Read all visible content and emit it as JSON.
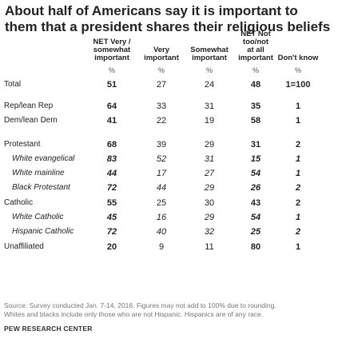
{
  "title": "About half of Americans say it is important to them that a president shares their religious beliefs",
  "columns": [
    {
      "label": "NET Very / somewhat important",
      "lines": [
        "NET Very /",
        "somewhat",
        "important"
      ],
      "pct": "%"
    },
    {
      "label": "Very important",
      "lines": [
        "Very",
        "important"
      ],
      "pct": "%"
    },
    {
      "label": "Somewhat important",
      "lines": [
        "Somewhat",
        "important"
      ],
      "pct": "%"
    },
    {
      "label": "NET Not too/not at all important",
      "lines": [
        "NET Not",
        "too/not",
        "at all",
        "important"
      ],
      "pct": "%"
    },
    {
      "label": "Don't know",
      "lines": [
        "Don't know"
      ],
      "pct": "%"
    }
  ],
  "chart_data": {
    "type": "table",
    "title": "About half of Americans say it is important to them that a president shares their religious beliefs",
    "columns": [
      "NET Very / somewhat important",
      "Very important",
      "Somewhat important",
      "NET Not too/not at all important",
      "Don't know"
    ],
    "rows": [
      {
        "label": "Total",
        "values": [
          "51",
          "27",
          "24",
          "48",
          "1=100"
        ],
        "sub": false
      },
      {
        "label": "Rep/lean Rep",
        "values": [
          "64",
          "33",
          "31",
          "35",
          "1"
        ],
        "sub": false
      },
      {
        "label": "Dem/lean Dem",
        "values": [
          "41",
          "22",
          "19",
          "58",
          "1"
        ],
        "sub": false
      },
      {
        "label": "Protestant",
        "values": [
          "68",
          "39",
          "29",
          "31",
          "2"
        ],
        "sub": false
      },
      {
        "label": "White evangelical",
        "values": [
          "83",
          "52",
          "31",
          "15",
          "1"
        ],
        "sub": true
      },
      {
        "label": "White mainline",
        "values": [
          "44",
          "17",
          "27",
          "54",
          "1"
        ],
        "sub": true
      },
      {
        "label": "Black Protestant",
        "values": [
          "72",
          "44",
          "29",
          "26",
          "2"
        ],
        "sub": true
      },
      {
        "label": "Catholic",
        "values": [
          "55",
          "25",
          "30",
          "43",
          "2"
        ],
        "sub": false
      },
      {
        "label": "White Catholic",
        "values": [
          "45",
          "16",
          "29",
          "54",
          "1"
        ],
        "sub": true
      },
      {
        "label": "Hispanic Catholic",
        "values": [
          "72",
          "40",
          "32",
          "25",
          "2"
        ],
        "sub": true
      },
      {
        "label": "Unaffiliated",
        "values": [
          "20",
          "9",
          "11",
          "80",
          "1"
        ],
        "sub": false
      }
    ]
  },
  "notes": [
    "Source: Survey conducted Jan. 7-14, 2016. Figures may not add to 100% due to rounding.",
    "Whites and blacks include only those who are not Hispanic. Hispanics are of any race."
  ],
  "source_org": "PEW RESEARCH CENTER"
}
